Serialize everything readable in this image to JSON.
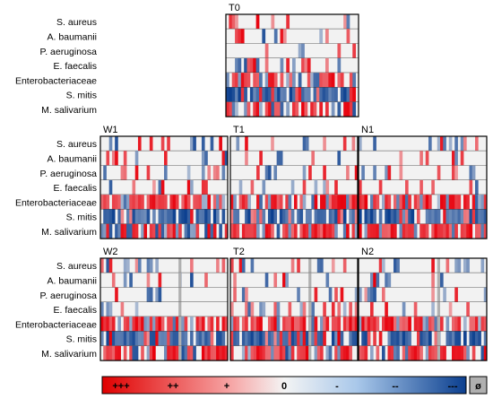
{
  "chart_data": {
    "type": "heatmap",
    "rows": [
      "S. aureus",
      "A. baumanii",
      "P. aeruginosa",
      "E. faecalis",
      "Enterobacteriaceae",
      "S. mitis",
      "M. salivarium"
    ],
    "panels": [
      {
        "title": "T0",
        "labels_shown": true
      },
      {
        "title": "W1",
        "labels_shown": true
      },
      {
        "title": "T1",
        "labels_shown": false
      },
      {
        "title": "N1",
        "labels_shown": false
      },
      {
        "title": "W2",
        "labels_shown": true
      },
      {
        "title": "T2",
        "labels_shown": false
      },
      {
        "title": "N2",
        "labels_shown": false
      }
    ],
    "legend": {
      "labels": [
        "+++",
        "++",
        "+",
        "0",
        "-",
        "--",
        "---"
      ],
      "missing_label": "ø"
    },
    "colors": {
      "strong_positive": "#e8000b",
      "neutral": "#f0f0f0",
      "strong_negative": "#0b3f8f",
      "missing": "#b0b0b0"
    }
  }
}
